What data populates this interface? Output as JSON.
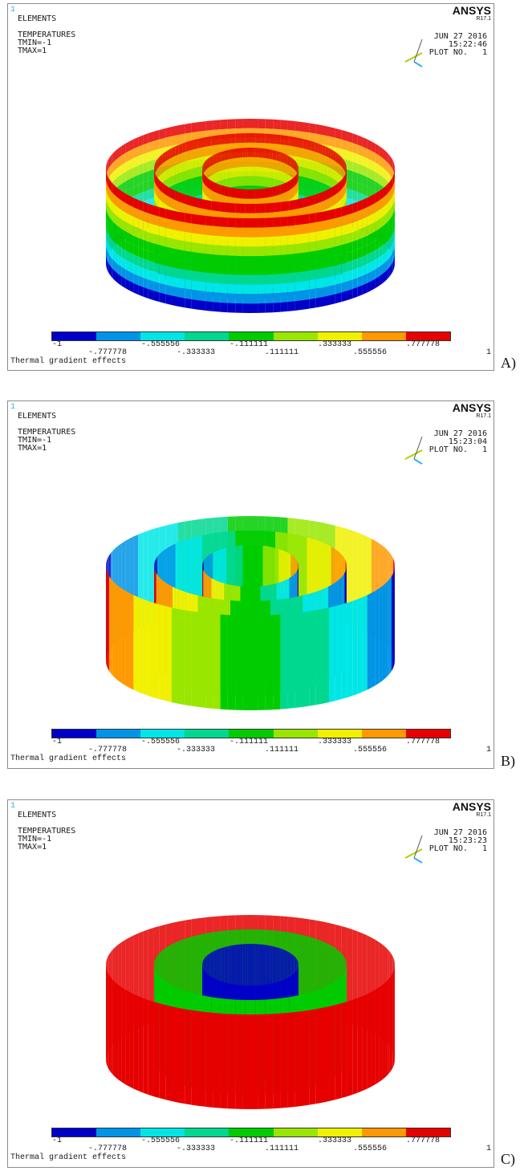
{
  "header": {
    "window_number": "1",
    "elements_label": "ELEMENTS",
    "result_label": "TEMPERATURES",
    "tmin": "TMIN=-1",
    "tmax": "TMAX=1",
    "brand": "ANSYS",
    "release": "R17.1",
    "date": "JUN 27 2016",
    "plot_no": "PLOT NO.   1",
    "triad_x": "X",
    "triad_y": "Y",
    "triad_z": "Z"
  },
  "legend": {
    "colors": [
      "#0000c8",
      "#0094e6",
      "#00e6e6",
      "#00d890",
      "#00cc00",
      "#99e600",
      "#f0f000",
      "#ff9900",
      "#e60000"
    ],
    "ticks_top": [
      "-1",
      "-.555556",
      "-.111111",
      ".333333",
      ".777778"
    ],
    "ticks_bottom": [
      "-.777778",
      "-.333333",
      ".111111",
      ".555556",
      "1"
    ],
    "caption": "Thermal gradient effects"
  },
  "panels": [
    {
      "id": "A",
      "time": "15:22:46",
      "tag": "A)",
      "mode": "axial"
    },
    {
      "id": "B",
      "time": "15:23:04",
      "tag": "B)",
      "mode": "lateral"
    },
    {
      "id": "C",
      "time": "15:23:23",
      "tag": "C)",
      "mode": "radial"
    }
  ]
}
